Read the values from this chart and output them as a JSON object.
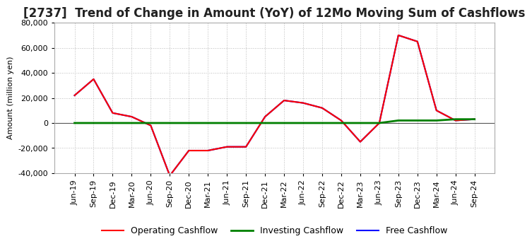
{
  "title": "[2737]  Trend of Change in Amount (YoY) of 12Mo Moving Sum of Cashflows",
  "ylabel": "Amount (million yen)",
  "background_color": "#ffffff",
  "grid_color": "#bbbbbb",
  "x_labels": [
    "Jun-19",
    "Sep-19",
    "Dec-19",
    "Mar-20",
    "Jun-20",
    "Sep-20",
    "Dec-20",
    "Mar-21",
    "Jun-21",
    "Sep-21",
    "Dec-21",
    "Mar-22",
    "Jun-22",
    "Sep-22",
    "Dec-22",
    "Mar-23",
    "Jun-23",
    "Sep-23",
    "Dec-23",
    "Mar-24",
    "Jun-24",
    "Sep-24"
  ],
  "operating_cashflow": [
    22000,
    35000,
    8000,
    5000,
    -2000,
    -42000,
    -22000,
    -22000,
    -19000,
    -19000,
    5000,
    18000,
    16000,
    12000,
    2000,
    -15000,
    0,
    70000,
    65000,
    10000,
    2000,
    3000
  ],
  "investing_cashflow": [
    0,
    0,
    0,
    0,
    0,
    0,
    0,
    0,
    0,
    0,
    0,
    0,
    0,
    0,
    0,
    0,
    0,
    2000,
    2000,
    2000,
    3000,
    3000
  ],
  "free_cashflow": [
    22000,
    35000,
    8000,
    5000,
    -2000,
    -42000,
    -22000,
    -22000,
    -19000,
    -19000,
    5000,
    18000,
    16000,
    12000,
    2000,
    -15000,
    0,
    70000,
    65000,
    10000,
    2000,
    3000
  ],
  "ylim": [
    -40000,
    80000
  ],
  "yticks": [
    -40000,
    -20000,
    0,
    20000,
    40000,
    60000,
    80000
  ],
  "operating_color": "#ff0000",
  "investing_color": "#008000",
  "free_color": "#0000ff",
  "title_fontsize": 12,
  "axis_fontsize": 8,
  "legend_fontsize": 9
}
